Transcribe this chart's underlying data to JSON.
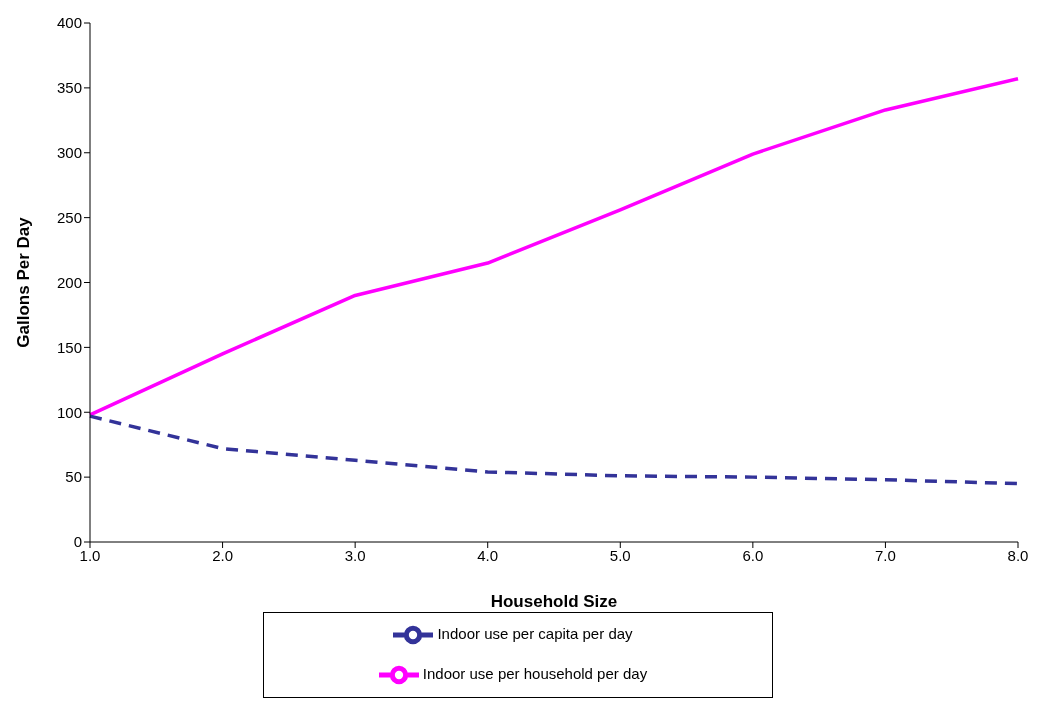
{
  "chart_data": {
    "type": "line",
    "xlabel": "Household Size",
    "ylabel": "Gallons Per Day",
    "categories": [
      "1.0",
      "2.0",
      "3.0",
      "4.0",
      "5.0",
      "6.0",
      "7.0",
      "8.0"
    ],
    "series": [
      {
        "name": "Indoor use per household per day",
        "color": "#ff00ff",
        "line_style": "solid",
        "values": [
          98,
          145,
          190,
          215,
          256,
          299,
          333,
          357
        ]
      },
      {
        "name": "Indoor use per capita per day",
        "color": "#333399",
        "line_style": "dashed",
        "values": [
          97,
          72,
          63,
          54,
          51,
          50,
          48,
          45
        ]
      }
    ],
    "ylim": [
      0,
      400
    ],
    "yticks": [
      0,
      50,
      100,
      150,
      200,
      250,
      300,
      350,
      400
    ],
    "grid": false,
    "legend": "bottom",
    "marker": "none"
  }
}
